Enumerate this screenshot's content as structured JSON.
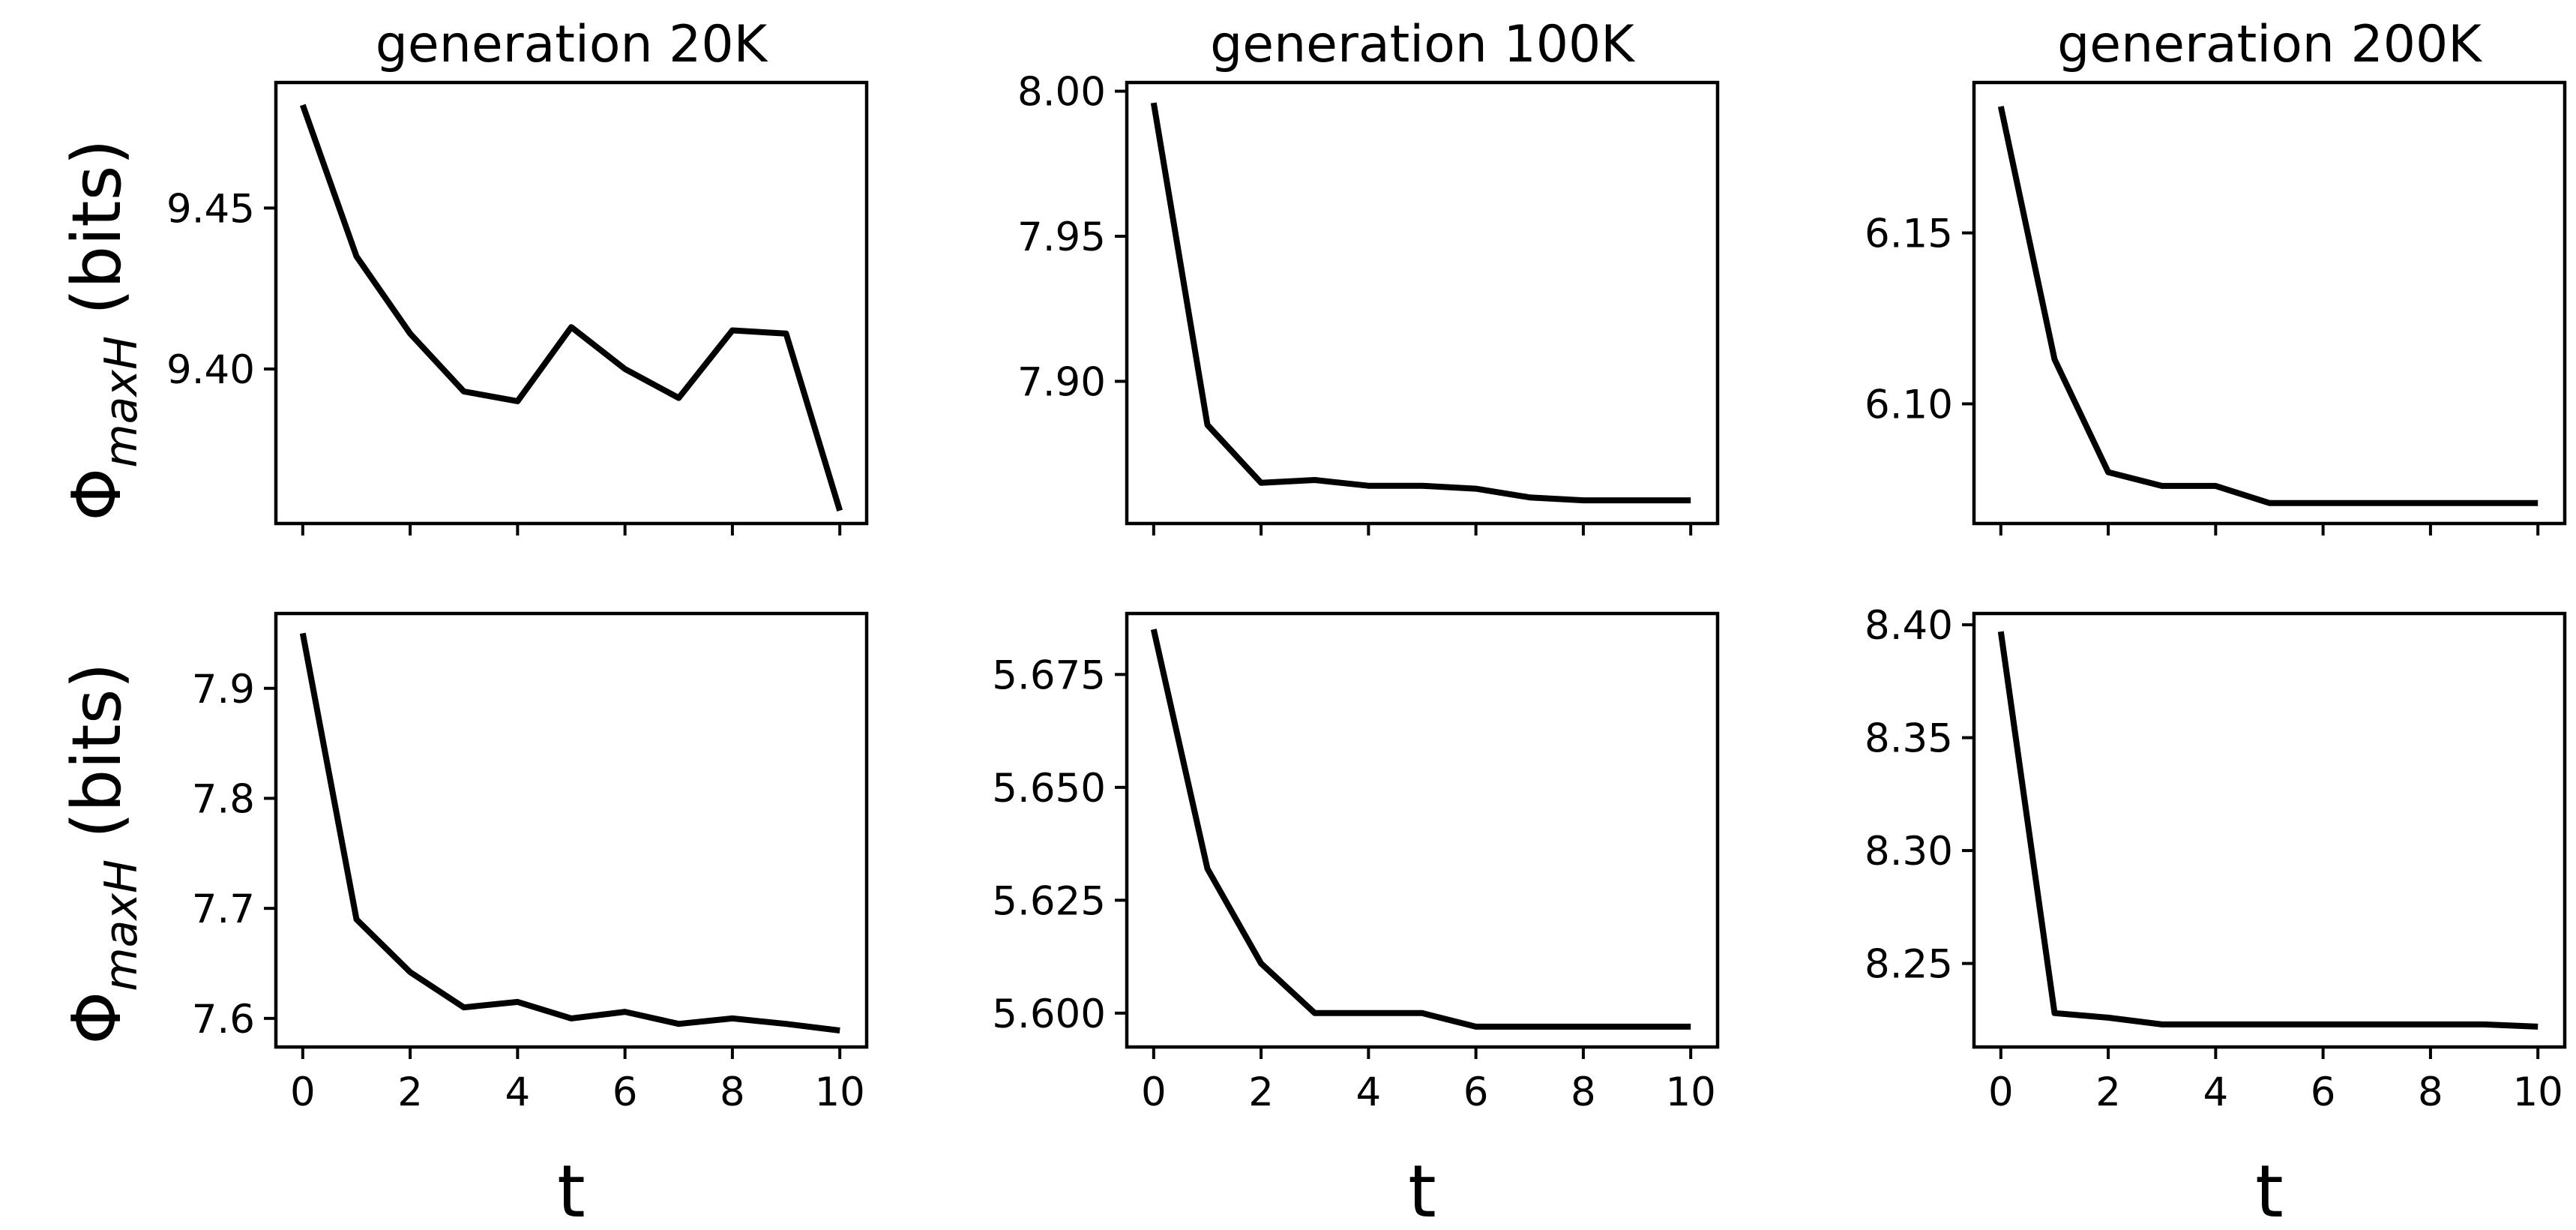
{
  "figure": {
    "ylabel": {
      "symbol": "Φ",
      "subscript": "maxH",
      "unit": "(bits)"
    },
    "xlabel": "t"
  },
  "chart_data": [
    {
      "type": "line",
      "title": "generation 20K",
      "row": 0,
      "col": 0,
      "x": [
        0,
        1,
        2,
        3,
        4,
        5,
        6,
        7,
        8,
        9,
        10
      ],
      "values": [
        9.482,
        9.435,
        9.411,
        9.393,
        9.39,
        9.413,
        9.4,
        9.391,
        9.412,
        9.411,
        9.356
      ],
      "ylim": [
        9.352,
        9.489
      ],
      "xlim": [
        -0.5,
        10.5
      ],
      "yticks": [
        "9.40",
        "9.45"
      ],
      "xticks": [
        0,
        2,
        4,
        6,
        8,
        10
      ],
      "show_xticklabels": false
    },
    {
      "type": "line",
      "title": "generation 100K",
      "row": 0,
      "col": 1,
      "x": [
        0,
        1,
        2,
        3,
        4,
        5,
        6,
        7,
        8,
        9,
        10
      ],
      "values": [
        7.996,
        7.885,
        7.865,
        7.866,
        7.864,
        7.864,
        7.863,
        7.86,
        7.859,
        7.859,
        7.859
      ],
      "ylim": [
        7.851,
        8.003
      ],
      "xlim": [
        -0.5,
        10.5
      ],
      "yticks": [
        "7.90",
        "7.95",
        "8.00"
      ],
      "xticks": [
        0,
        2,
        4,
        6,
        8,
        10
      ],
      "show_xticklabels": false
    },
    {
      "type": "line",
      "title": "generation 200K",
      "row": 0,
      "col": 2,
      "x": [
        0,
        1,
        2,
        3,
        4,
        5,
        6,
        7,
        8,
        9,
        10
      ],
      "values": [
        6.187,
        6.113,
        6.08,
        6.076,
        6.076,
        6.071,
        6.071,
        6.071,
        6.071,
        6.071,
        6.071
      ],
      "ylim": [
        6.065,
        6.194
      ],
      "xlim": [
        -0.5,
        10.5
      ],
      "yticks": [
        "6.10",
        "6.15"
      ],
      "xticks": [
        0,
        2,
        4,
        6,
        8,
        10
      ],
      "show_xticklabels": false
    },
    {
      "type": "line",
      "title": "",
      "row": 1,
      "col": 0,
      "x": [
        0,
        1,
        2,
        3,
        4,
        5,
        6,
        7,
        8,
        9,
        10
      ],
      "values": [
        7.95,
        7.69,
        7.642,
        7.61,
        7.615,
        7.6,
        7.606,
        7.595,
        7.6,
        7.595,
        7.589
      ],
      "ylim": [
        7.574,
        7.968
      ],
      "xlim": [
        -0.5,
        10.5
      ],
      "yticks": [
        "7.6",
        "7.7",
        "7.8",
        "7.9"
      ],
      "xticks": [
        0,
        2,
        4,
        6,
        8,
        10
      ],
      "show_xticklabels": true
    },
    {
      "type": "line",
      "title": "",
      "row": 1,
      "col": 1,
      "x": [
        0,
        1,
        2,
        3,
        4,
        5,
        6,
        7,
        8,
        9,
        10
      ],
      "values": [
        5.685,
        5.632,
        5.611,
        5.6,
        5.6,
        5.6,
        5.597,
        5.597,
        5.597,
        5.597,
        5.597
      ],
      "ylim": [
        5.5925,
        5.6885
      ],
      "xlim": [
        -0.5,
        10.5
      ],
      "yticks": [
        "5.600",
        "5.625",
        "5.650",
        "5.675"
      ],
      "xticks": [
        0,
        2,
        4,
        6,
        8,
        10
      ],
      "show_xticklabels": true
    },
    {
      "type": "line",
      "title": "",
      "row": 1,
      "col": 2,
      "x": [
        0,
        1,
        2,
        3,
        4,
        5,
        6,
        7,
        8,
        9,
        10
      ],
      "values": [
        8.397,
        8.228,
        8.226,
        8.223,
        8.223,
        8.223,
        8.223,
        8.223,
        8.223,
        8.223,
        8.222
      ],
      "ylim": [
        8.213,
        8.405
      ],
      "xlim": [
        -0.5,
        10.5
      ],
      "yticks": [
        "8.25",
        "8.30",
        "8.35",
        "8.40"
      ],
      "xticks": [
        0,
        2,
        4,
        6,
        8,
        10
      ],
      "show_xticklabels": true
    }
  ]
}
